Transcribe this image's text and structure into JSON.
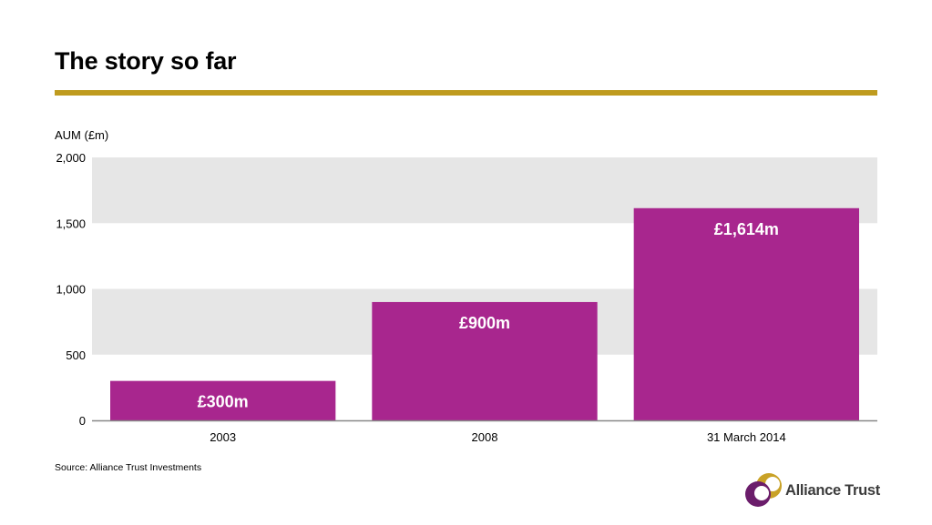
{
  "slide": {
    "title": "The story so far",
    "source": "Source: Alliance Trust Investments",
    "logo_text": "Alliance Trust"
  },
  "colors": {
    "accent_rule": "#bf9b1e",
    "bar": "#a8268e",
    "band": "#e6e6e6",
    "logo_gold": "#c9a227",
    "logo_purple": "#6b1d6b"
  },
  "chart_data": {
    "type": "bar",
    "ylabel": "AUM (£m)",
    "categories": [
      "2003",
      "2008",
      "31 March 2014"
    ],
    "values": [
      300,
      900,
      1614
    ],
    "data_labels": [
      "£300m",
      "£900m",
      "£1,614m"
    ],
    "ylim": [
      0,
      2000
    ],
    "yticks": [
      0,
      500,
      1000,
      1500,
      2000
    ],
    "ytick_labels": [
      "0",
      "500",
      "1,000",
      "1,500",
      "2,000"
    ],
    "grid": "alternating bands",
    "legend": "none"
  }
}
